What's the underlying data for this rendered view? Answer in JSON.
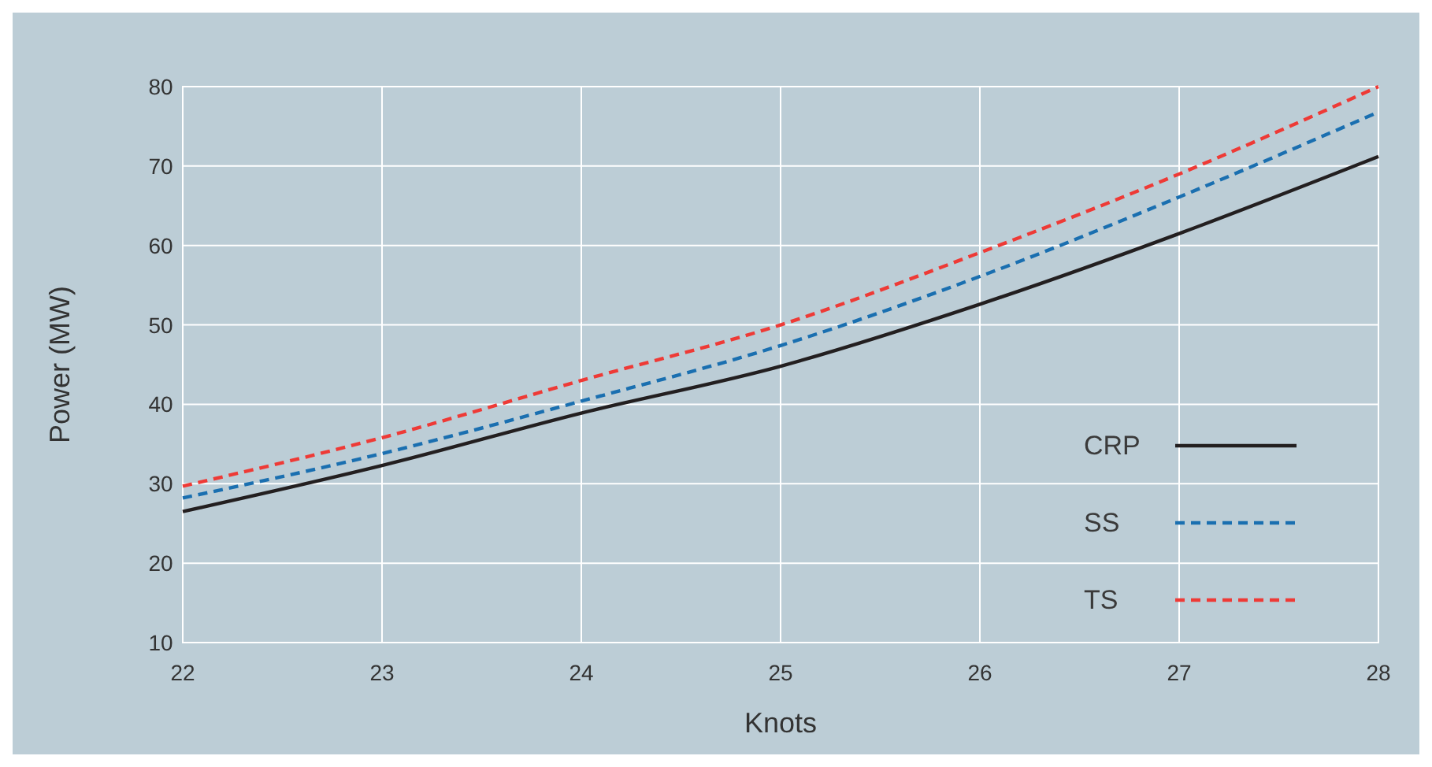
{
  "chart_data": {
    "type": "line",
    "xlabel": "Knots",
    "ylabel": "Power (MW)",
    "x": [
      22,
      23,
      24,
      25,
      26,
      27,
      28
    ],
    "series": [
      {
        "name": "CRP",
        "color": "#231f20",
        "line_style": "solid",
        "values": [
          26.5,
          32.3,
          38.9,
          44.8,
          52.6,
          61.5,
          71.2
        ]
      },
      {
        "name": "SS",
        "color": "#1a6fb0",
        "line_style": "dashed",
        "values": [
          28.2,
          33.8,
          40.4,
          47.4,
          56.1,
          66.1,
          76.8
        ]
      },
      {
        "name": "TS",
        "color": "#ee3a36",
        "line_style": "dashed",
        "values": [
          29.7,
          35.8,
          43.0,
          50.0,
          59.1,
          69.0,
          80.0
        ]
      }
    ],
    "xlim": [
      22,
      28
    ],
    "xticks": [
      22,
      23,
      24,
      25,
      26,
      27,
      28
    ],
    "ylim": [
      10,
      80
    ],
    "yticks": [
      10,
      20,
      30,
      40,
      50,
      60,
      70,
      80
    ],
    "grid": true,
    "legend": "bottom right",
    "marker": "none"
  }
}
